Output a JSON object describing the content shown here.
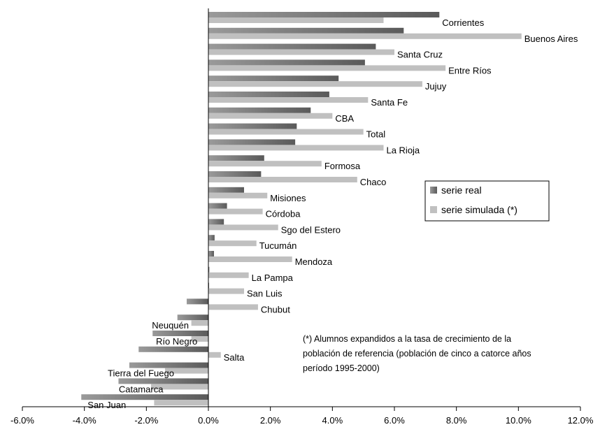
{
  "chart_data": {
    "type": "bar",
    "orientation": "horizontal",
    "categories": [
      "Corrientes",
      "Buenos Aires",
      "Santa Cruz",
      "Entre Ríos",
      "Jujuy",
      "Santa Fe",
      "CBA",
      "Total",
      "La Rioja",
      "Formosa",
      "Chaco",
      "Misiones",
      "Córdoba",
      "Sgo del Estero",
      "Tucumán",
      "Mendoza",
      "La Pampa",
      "San Luis",
      "Chubut",
      "Neuquén",
      "Río Negro",
      "Salta",
      "Tierra del Fuego",
      "Catamarca",
      "San Juan"
    ],
    "series": [
      {
        "name": "serie real",
        "color": "#5a5a5a",
        "values": [
          7.45,
          6.3,
          5.4,
          5.05,
          4.2,
          3.9,
          3.3,
          2.85,
          2.8,
          1.8,
          1.7,
          1.15,
          0.6,
          0.5,
          0.2,
          0.18,
          0.03,
          0.02,
          -0.7,
          -1.0,
          -1.8,
          -2.25,
          -2.55,
          -2.9,
          -4.1
        ]
      },
      {
        "name": "serie simulada (*)",
        "color": "#c0c0c0",
        "values": [
          5.65,
          10.1,
          6.0,
          7.65,
          6.9,
          5.15,
          4.0,
          5.0,
          5.65,
          3.65,
          4.8,
          1.9,
          1.75,
          2.25,
          1.55,
          2.7,
          1.3,
          1.15,
          1.6,
          -0.55,
          -0.55,
          0.4,
          -1.4,
          -1.85,
          -1.75
        ]
      }
    ],
    "xlim": [
      -6,
      12
    ],
    "xticks": [
      -6,
      -4,
      -2,
      0,
      2,
      4,
      6,
      8,
      10,
      12
    ],
    "xtick_labels": [
      "-6.0%",
      "-4.0%",
      "-2.0%",
      "0.0%",
      "2.0%",
      "4.0%",
      "6.0%",
      "8.0%",
      "10.0%",
      "12.0%"
    ],
    "legend_position": "right",
    "grid": false,
    "note_lines": [
      "(*) Alumnos expandidos a la tasa de crecimiento de la",
      "población de referencia (población de cinco a catorce años",
      "período 1995-2000)"
    ]
  }
}
